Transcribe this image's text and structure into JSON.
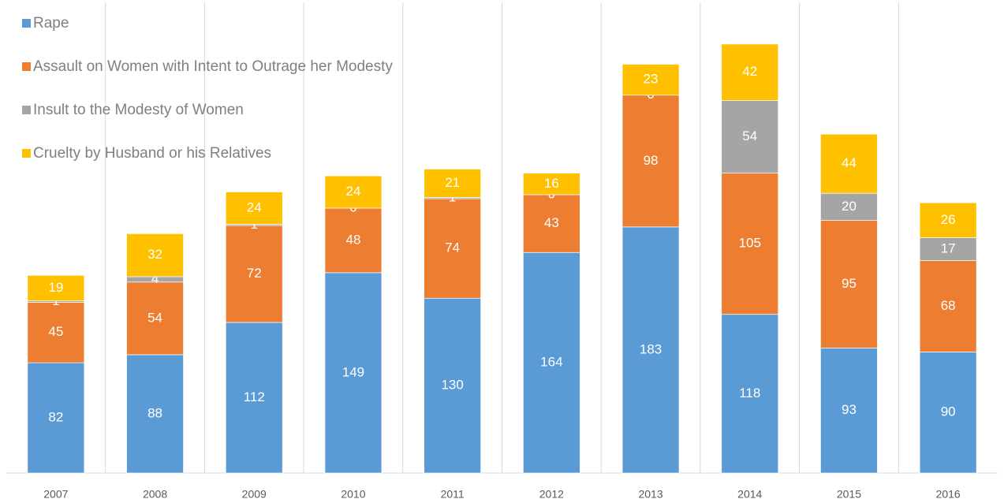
{
  "chart_data": {
    "type": "stacked_bar",
    "categories": [
      "2007",
      "2008",
      "2009",
      "2010",
      "2011",
      "2012",
      "2013",
      "2014",
      "2015",
      "2016"
    ],
    "series": [
      {
        "name": "Rape",
        "color": "#5b9bd5",
        "values": [
          82,
          88,
          112,
          149,
          130,
          164,
          183,
          118,
          93,
          90
        ]
      },
      {
        "name": "Assault on Women with Intent to Outrage her Modesty",
        "color": "#ed7d31",
        "values": [
          45,
          54,
          72,
          48,
          74,
          43,
          98,
          105,
          95,
          68
        ]
      },
      {
        "name": "Insult to the Modesty of Women",
        "color": "#a5a5a5",
        "values": [
          1,
          4,
          1,
          0,
          1,
          0,
          0,
          54,
          20,
          17
        ]
      },
      {
        "name": "Cruelty by Husband or his Relatives",
        "color": "#ffc000",
        "values": [
          19,
          32,
          24,
          24,
          21,
          16,
          23,
          42,
          44,
          26
        ]
      }
    ],
    "ylim": [
      0,
      350
    ],
    "legend": "top-left",
    "grid": true
  }
}
